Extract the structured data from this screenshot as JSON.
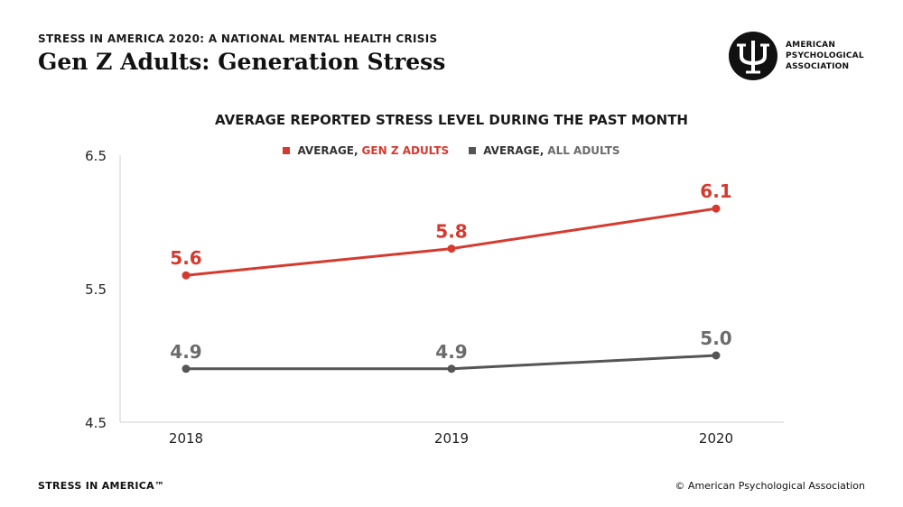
{
  "header": {
    "kicker": "STRESS IN AMERICA 2020: A NATIONAL MENTAL HEALTH CRISIS",
    "title": "Gen Z Adults: Generation Stress"
  },
  "logo": {
    "line1": "AMERICAN",
    "line2": "PSYCHOLOGICAL",
    "line3": "ASSOCIATION",
    "icon": "psi-logo-icon"
  },
  "colors": {
    "accent": "#d63a2f",
    "gray": "#555555",
    "gray_label": "#6b6b6b",
    "axis": "#cfcfcf"
  },
  "legend": {
    "prefix_genz": "AVERAGE,",
    "name_genz": "GEN Z ADULTS",
    "prefix_all": "AVERAGE,",
    "name_all": "ALL ADULTS"
  },
  "chart_data": {
    "type": "line",
    "title": "AVERAGE REPORTED STRESS LEVEL DURING THE PAST MONTH",
    "categories": [
      "2018",
      "2019",
      "2020"
    ],
    "series": [
      {
        "name": "GEN Z ADULTS",
        "values": [
          5.6,
          5.8,
          6.1
        ],
        "labels": [
          "5.6",
          "5.8",
          "6.1"
        ],
        "color": "#d63a2f"
      },
      {
        "name": "ALL ADULTS",
        "values": [
          4.9,
          4.9,
          5.0
        ],
        "labels": [
          "4.9",
          "4.9",
          "5.0"
        ],
        "color": "#555555"
      }
    ],
    "y_ticks": [
      {
        "value": 6.5,
        "label": "6.5"
      },
      {
        "value": 5.5,
        "label": "5.5"
      },
      {
        "value": 4.5,
        "label": "4.5"
      }
    ],
    "ylim": [
      4.5,
      6.5
    ],
    "grid": false,
    "legend_position": "top-center"
  },
  "footer": {
    "left": "STRESS IN AMERICA™",
    "right": "© American Psychological Association"
  }
}
